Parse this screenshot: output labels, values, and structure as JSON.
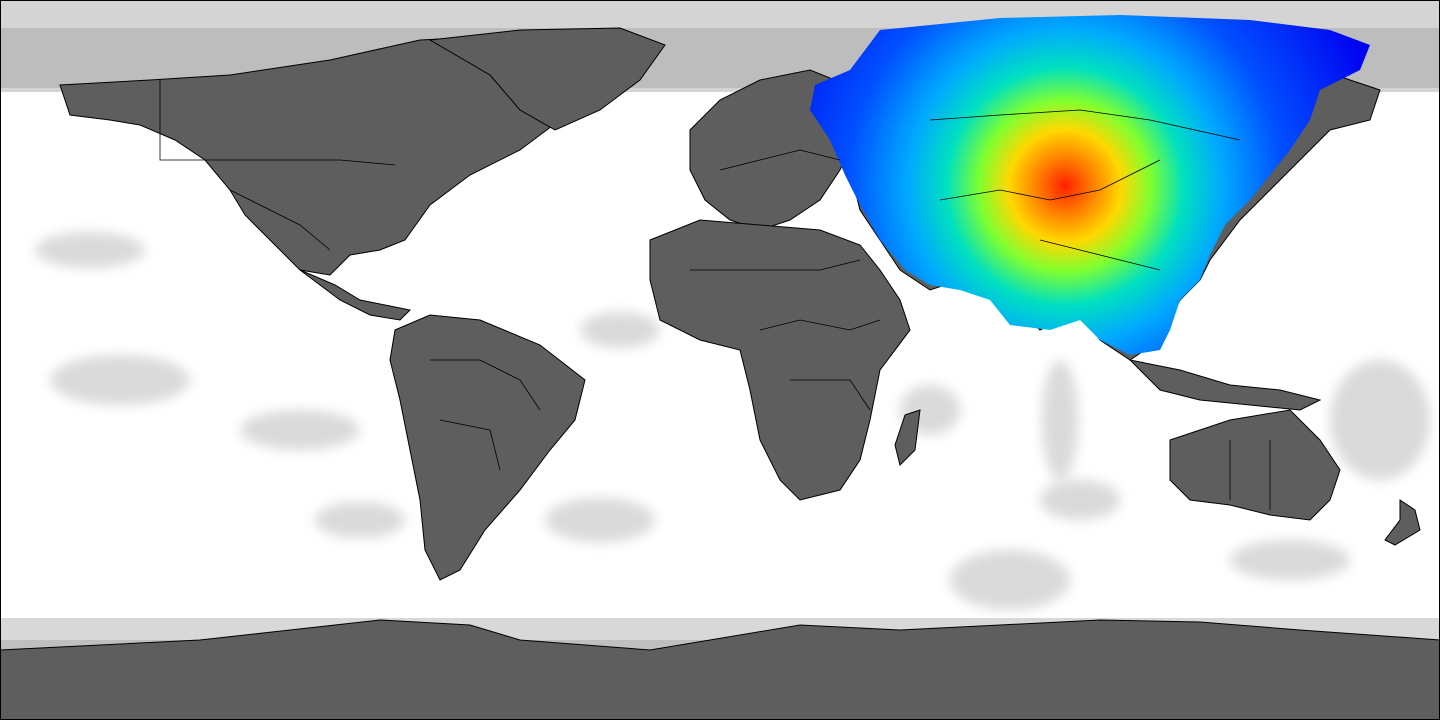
{
  "map": {
    "projection": "equirectangular",
    "extent": {
      "lon_min": -180,
      "lon_max": 180,
      "lat_min": -90,
      "lat_max": 90
    },
    "background_color": "#ffffff",
    "coastline_color": "#000000",
    "heatmap_colormap": [
      "#0000ff",
      "#0077ff",
      "#00ffff",
      "#00ff66",
      "#ffff00",
      "#ff8800",
      "#ff0000"
    ],
    "grey_levels": [
      "#ffffff",
      "#d8d8d8",
      "#bdbdbd",
      "#5f5f5f"
    ],
    "heatmap_center": {
      "lon": 90,
      "lat": 44
    },
    "legend": null
  }
}
